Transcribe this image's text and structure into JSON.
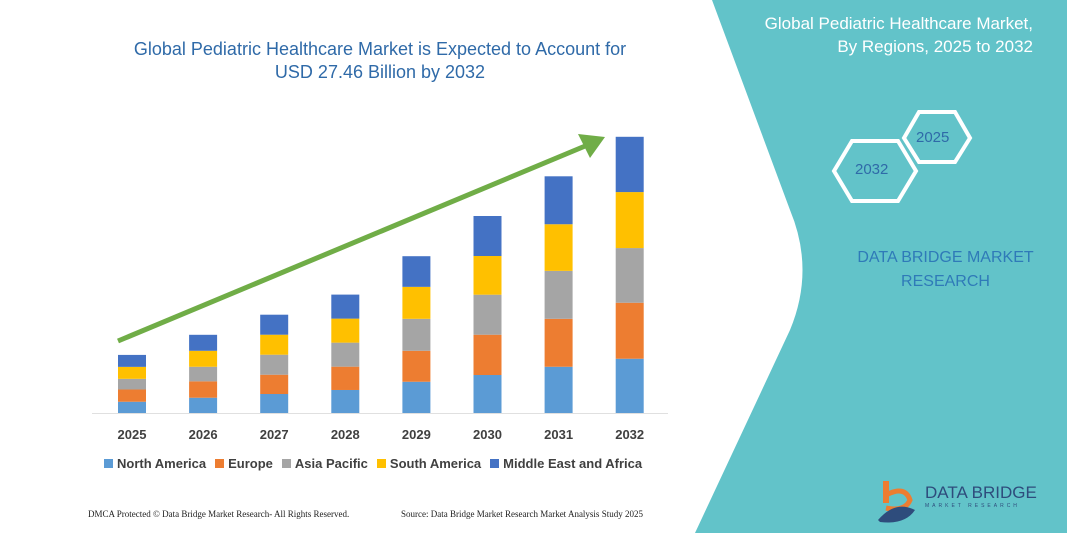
{
  "header": {
    "title_line1": "Global Pediatric Healthcare Market is Expected to Account for",
    "title_line2": "USD 27.46 Billion by 2032"
  },
  "side_panel": {
    "title_line1": "Global Pediatric Healthcare Market,",
    "title_line2": "By Regions, 2025 to 2032",
    "hex_start": "2025",
    "hex_end": "2032",
    "brand_line1": "DATA BRIDGE MARKET",
    "brand_line2": "RESEARCH",
    "logo_text": "DATA BRIDGE",
    "logo_subtext": "MARKET RESEARCH",
    "panel_color": "#62c3c9"
  },
  "footer": {
    "left": "DMCA Protected © Data Bridge Market Research-  All Rights Reserved.",
    "right": "Source: Data Bridge Market Research  Market Analysis Study 2025"
  },
  "chart_data": {
    "type": "bar",
    "stacked": true,
    "title": "Global Pediatric Healthcare Market is Expected to Account for USD 27.46 Billion by 2032",
    "categories": [
      "2025",
      "2026",
      "2027",
      "2028",
      "2029",
      "2030",
      "2031",
      "2032"
    ],
    "series": [
      {
        "name": "North America",
        "color": "#5b9bd5",
        "values": [
          1.12,
          1.52,
          1.89,
          2.29,
          3.11,
          3.78,
          4.6,
          5.4
        ]
      },
      {
        "name": "Europe",
        "color": "#ed7d31",
        "values": [
          1.22,
          1.63,
          1.92,
          2.32,
          3.08,
          4.01,
          4.77,
          5.57
        ]
      },
      {
        "name": "Asia Pacific",
        "color": "#a5a5a5",
        "values": [
          1.06,
          1.45,
          1.99,
          2.39,
          3.18,
          3.98,
          4.77,
          5.44
        ]
      },
      {
        "name": "South America",
        "color": "#ffc000",
        "values": [
          1.19,
          1.59,
          1.99,
          2.39,
          3.18,
          3.85,
          4.64,
          5.57
        ]
      },
      {
        "name": "Middle East and Africa",
        "color": "#4472c4",
        "values": [
          1.19,
          1.59,
          1.99,
          2.39,
          3.05,
          3.98,
          4.77,
          5.5
        ]
      }
    ],
    "xlabel": "",
    "ylabel": "",
    "ylim": [
      0,
      27.46
    ],
    "grid": false,
    "legend": "bottom",
    "trend_arrow_color": "#70ad47"
  }
}
